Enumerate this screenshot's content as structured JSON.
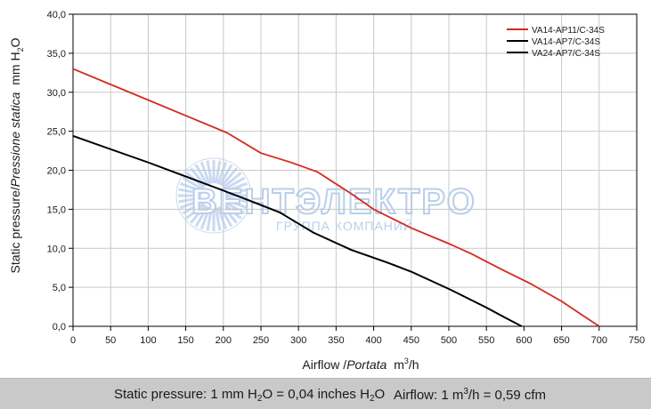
{
  "chart_data": {
    "type": "line",
    "xlabel_main": "Airflow",
    "xlabel_italic": "Portata",
    "xlabel_unit": "m",
    "xlabel_unit_sup": "3",
    "xlabel_unit_tail": "/h",
    "ylabel_main": "Static pressure",
    "ylabel_italic": "Pressione statica",
    "ylabel_unit": "mm  H",
    "ylabel_unit_sub": "2",
    "ylabel_unit_tail": "O",
    "xlim": [
      0,
      750
    ],
    "ylim": [
      0,
      40
    ],
    "xticks": [
      "0",
      "50",
      "100",
      "150",
      "200",
      "250",
      "300",
      "350",
      "400",
      "450",
      "500",
      "550",
      "600",
      "650",
      "700",
      "750"
    ],
    "yticks": [
      "0,0",
      "5,0",
      "10,0",
      "15,0",
      "20,0",
      "25,0",
      "30,0",
      "35,0",
      "40,0"
    ],
    "grid": true,
    "legend_position": "top-right",
    "series": [
      {
        "name": "VA14-AP11/C-34S",
        "color": "#d42a1e",
        "points": [
          [
            0,
            33.0
          ],
          [
            50,
            31.0
          ],
          [
            100,
            29.0
          ],
          [
            150,
            27.0
          ],
          [
            205,
            24.8
          ],
          [
            250,
            22.2
          ],
          [
            290,
            21.0
          ],
          [
            325,
            19.8
          ],
          [
            370,
            17.0
          ],
          [
            400,
            15.0
          ],
          [
            450,
            12.6
          ],
          [
            500,
            10.6
          ],
          [
            530,
            9.3
          ],
          [
            570,
            7.3
          ],
          [
            610,
            5.4
          ],
          [
            650,
            3.2
          ],
          [
            675,
            1.6
          ],
          [
            700,
            0.0
          ]
        ]
      },
      {
        "name": "VA14-AP7/C-34S",
        "color": "#000000",
        "points": [
          [
            0,
            24.4
          ],
          [
            50,
            22.7
          ],
          [
            100,
            21.0
          ],
          [
            150,
            19.2
          ],
          [
            200,
            17.4
          ],
          [
            230,
            16.3
          ],
          [
            275,
            14.6
          ],
          [
            320,
            12.0
          ],
          [
            370,
            9.8
          ],
          [
            420,
            8.1
          ],
          [
            450,
            7.0
          ],
          [
            500,
            4.8
          ],
          [
            550,
            2.4
          ],
          [
            575,
            1.1
          ],
          [
            597,
            0.0
          ]
        ]
      },
      {
        "name": "VA24-AP7/C-34S",
        "color": "#000000",
        "points": [
          [
            0,
            24.4
          ],
          [
            50,
            22.7
          ],
          [
            100,
            21.0
          ],
          [
            150,
            19.2
          ],
          [
            200,
            17.4
          ],
          [
            230,
            16.3
          ],
          [
            275,
            14.6
          ],
          [
            320,
            12.0
          ],
          [
            370,
            9.8
          ],
          [
            420,
            8.1
          ],
          [
            450,
            7.0
          ],
          [
            500,
            4.8
          ],
          [
            550,
            2.4
          ],
          [
            575,
            1.1
          ],
          [
            597,
            0.0
          ]
        ]
      }
    ]
  },
  "watermark": {
    "brand": "ВЕНТЭЛЕКТРО",
    "tagline": "ГРУППА КОМПАНИЙ",
    "color": "#7fa8dc"
  },
  "footer": {
    "pressure_label": "Static pressure: 1 mm H",
    "pressure_sub": "2",
    "pressure_mid": "O = 0,04 inches H",
    "pressure_sub2": "2",
    "pressure_tail": "O",
    "airflow_label": "Airflow: 1 m",
    "airflow_sup": "3",
    "airflow_tail": "/h = 0,59 cfm"
  }
}
